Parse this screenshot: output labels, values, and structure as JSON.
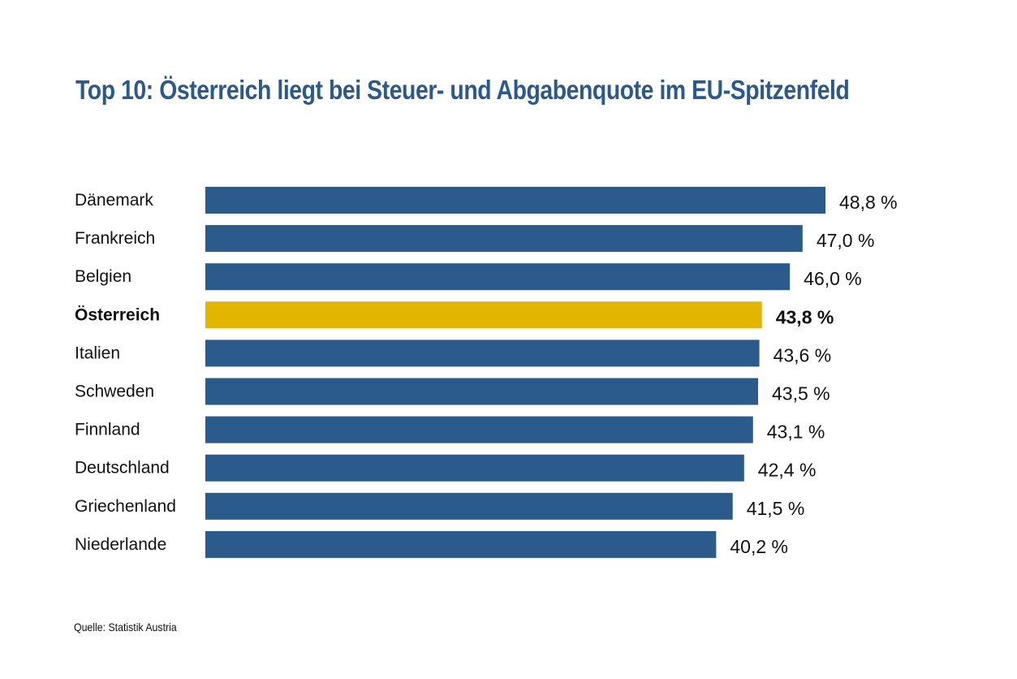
{
  "chart_data": {
    "type": "bar",
    "orientation": "horizontal",
    "title": "Top 10:  Österreich liegt bei Steuer- und Abgabenquote im EU-Spitzenfeld",
    "categories": [
      "Dänemark",
      "Frankreich",
      "Belgien",
      "Österreich",
      "Italien",
      "Schweden",
      "Finnland",
      "Deutschland",
      "Griechenland",
      "Niederlande"
    ],
    "values": [
      48.8,
      47.0,
      46.0,
      43.8,
      43.6,
      43.5,
      43.1,
      42.4,
      41.5,
      40.2
    ],
    "value_labels": [
      "48,8 %",
      "47,0 %",
      "46,0 %",
      "43,8 %",
      "43,6 %",
      "43,5 %",
      "43,1 %",
      "42,4 %",
      "41,5 %",
      "40,2 %"
    ],
    "highlight": "Österreich",
    "xlim": [
      0,
      48.8
    ],
    "xlabel": "",
    "ylabel": "",
    "grid": false,
    "legend": "none",
    "source": "Quelle: Statistik Austria"
  },
  "colors": {
    "bar": "#2b5b8c",
    "highlight": "#e2b500",
    "title": "#2a5a8c"
  }
}
